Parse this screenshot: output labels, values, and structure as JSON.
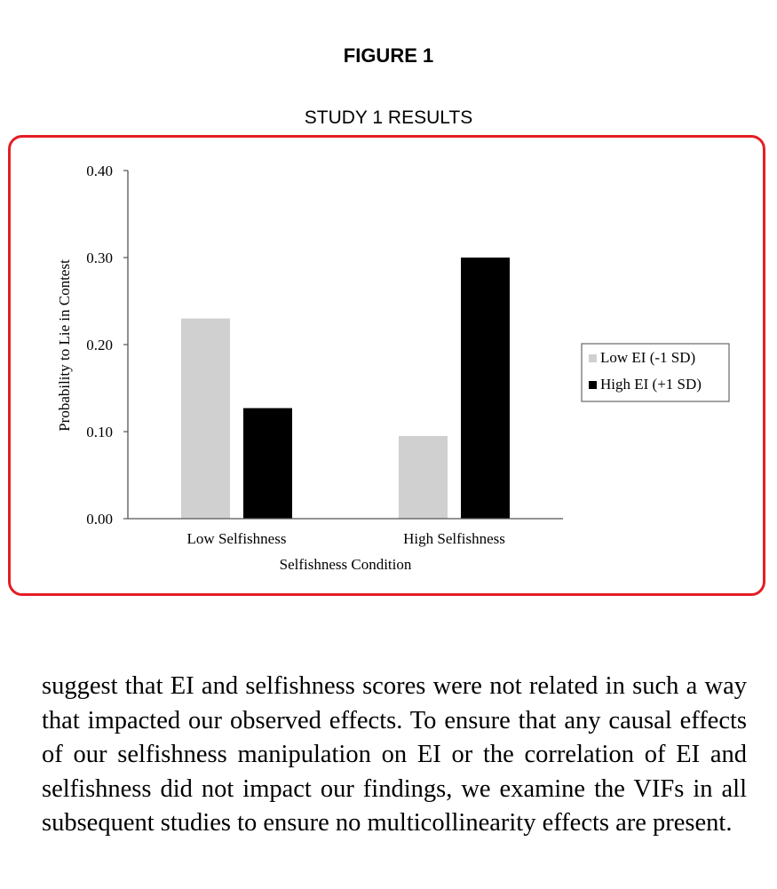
{
  "figure": {
    "label": "FIGURE 1",
    "title": "STUDY 1 RESULTS"
  },
  "chart_data": {
    "type": "bar",
    "categories": [
      "Low Selfishness",
      "High Selfishness"
    ],
    "series": [
      {
        "name": "Low EI (-1 SD)",
        "color": "#d0d0d0",
        "values": [
          0.23,
          0.095
        ]
      },
      {
        "name": "High EI (+1 SD)",
        "color": "#000000",
        "values": [
          0.127,
          0.3
        ]
      }
    ],
    "xlabel": "Selfishness Condition",
    "ylabel": "Probability to Lie in Contest",
    "ylim": [
      0,
      0.4
    ],
    "yticks": [
      "0.00",
      "0.10",
      "0.20",
      "0.30",
      "0.40"
    ],
    "grid": false,
    "legend_position": "right"
  },
  "body": {
    "paragraph": "suggest that EI and selfishness scores were not related in such a way that impacted our observed effects. To ensure that any causal effects of our selfishness manipulation on EI or the correlation of EI and selfishness did not impact our findings, we examine the VIFs in all subsequent studies to ensure no multicollinearity effects are present."
  }
}
